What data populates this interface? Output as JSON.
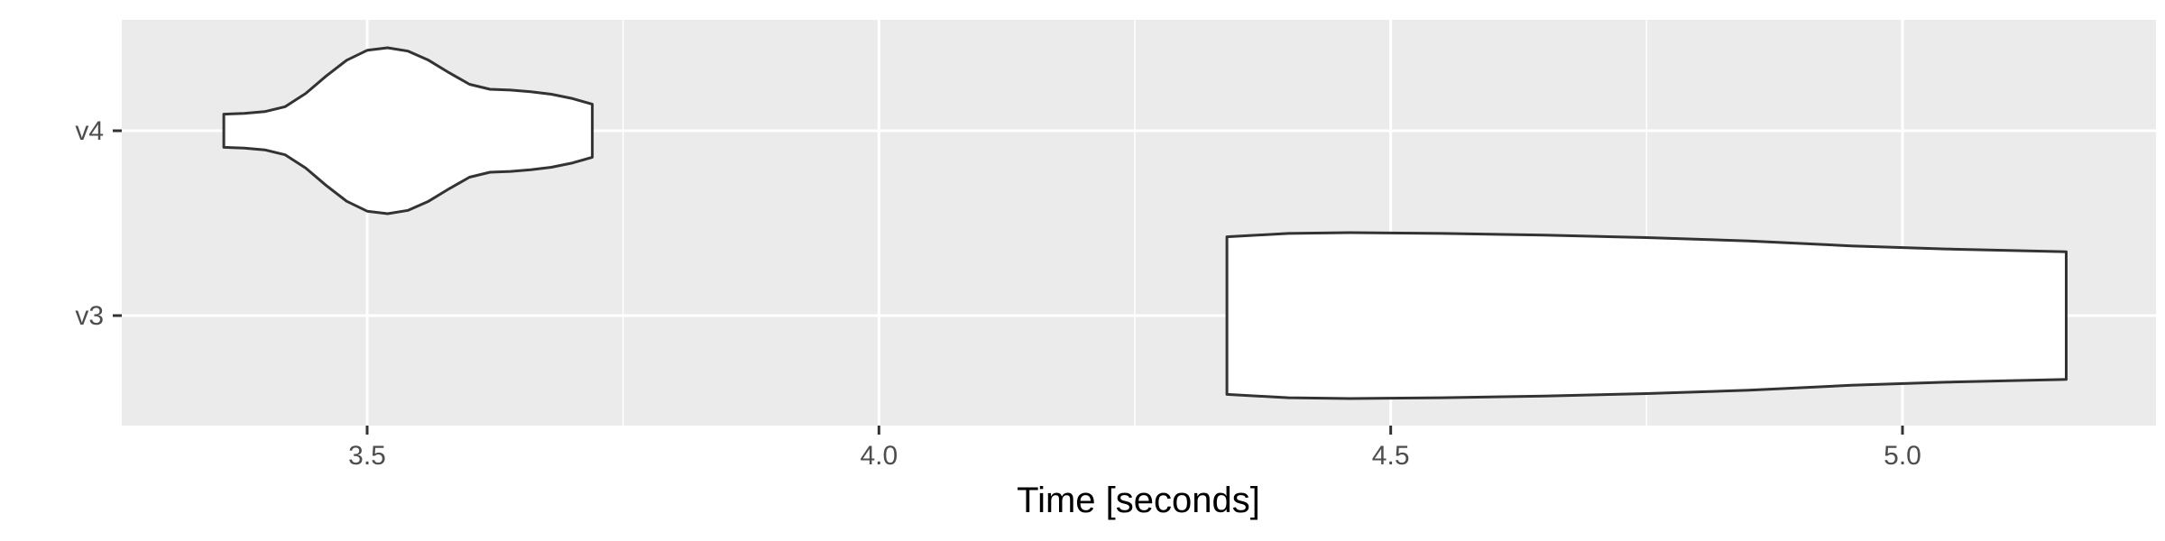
{
  "chart_data": {
    "type": "violin",
    "title": "",
    "xlabel": "Time [seconds]",
    "ylabel": "",
    "xlim": [
      3.25,
      5.27
    ],
    "x_ticks": [
      3.5,
      4.0,
      4.5,
      5.0
    ],
    "x_tick_labels": [
      "3.5",
      "4.0",
      "4.5",
      "5.0"
    ],
    "x_minor_ticks": [
      3.75,
      4.25,
      4.75
    ],
    "categories": [
      "v3",
      "v4"
    ],
    "grid": true,
    "colors": {
      "panel_background": "#ebebeb",
      "grid_line": "#ffffff",
      "violin_fill": "#ffffff",
      "violin_stroke": "#333333"
    },
    "series": [
      {
        "category": "v4",
        "range": [
          3.36,
          3.72
        ],
        "profile": [
          [
            3.36,
            0.2
          ],
          [
            3.38,
            0.21
          ],
          [
            3.4,
            0.23
          ],
          [
            3.42,
            0.29
          ],
          [
            3.44,
            0.45
          ],
          [
            3.46,
            0.66
          ],
          [
            3.48,
            0.85
          ],
          [
            3.5,
            0.97
          ],
          [
            3.52,
            1.0
          ],
          [
            3.54,
            0.96
          ],
          [
            3.56,
            0.85
          ],
          [
            3.58,
            0.7
          ],
          [
            3.6,
            0.56
          ],
          [
            3.62,
            0.5
          ],
          [
            3.64,
            0.49
          ],
          [
            3.66,
            0.47
          ],
          [
            3.68,
            0.44
          ],
          [
            3.7,
            0.39
          ],
          [
            3.72,
            0.32
          ]
        ]
      },
      {
        "category": "v3",
        "range": [
          4.34,
          5.16
        ],
        "profile": [
          [
            4.34,
            0.95
          ],
          [
            4.4,
            0.99
          ],
          [
            4.46,
            1.0
          ],
          [
            4.55,
            0.99
          ],
          [
            4.65,
            0.97
          ],
          [
            4.75,
            0.94
          ],
          [
            4.85,
            0.9
          ],
          [
            4.95,
            0.84
          ],
          [
            5.05,
            0.8
          ],
          [
            5.16,
            0.77
          ]
        ]
      }
    ]
  }
}
